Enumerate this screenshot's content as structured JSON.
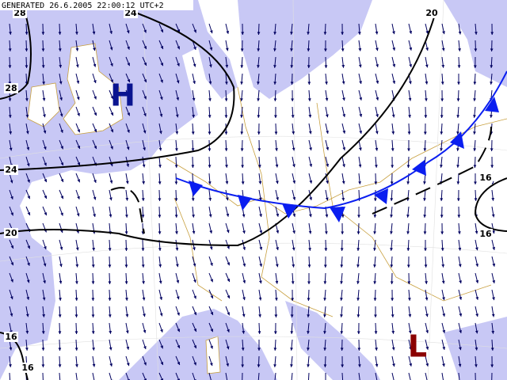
{
  "header": {
    "generated": "GENERATED 26.6.2005 22:00:12 UTC+2"
  },
  "pressure_centers": [
    {
      "label": "H"
    },
    {
      "label": "L"
    }
  ],
  "isobar_labels": [
    "28",
    "24",
    "20",
    "28",
    "24",
    "20",
    "16",
    "16",
    "16",
    "16"
  ]
}
